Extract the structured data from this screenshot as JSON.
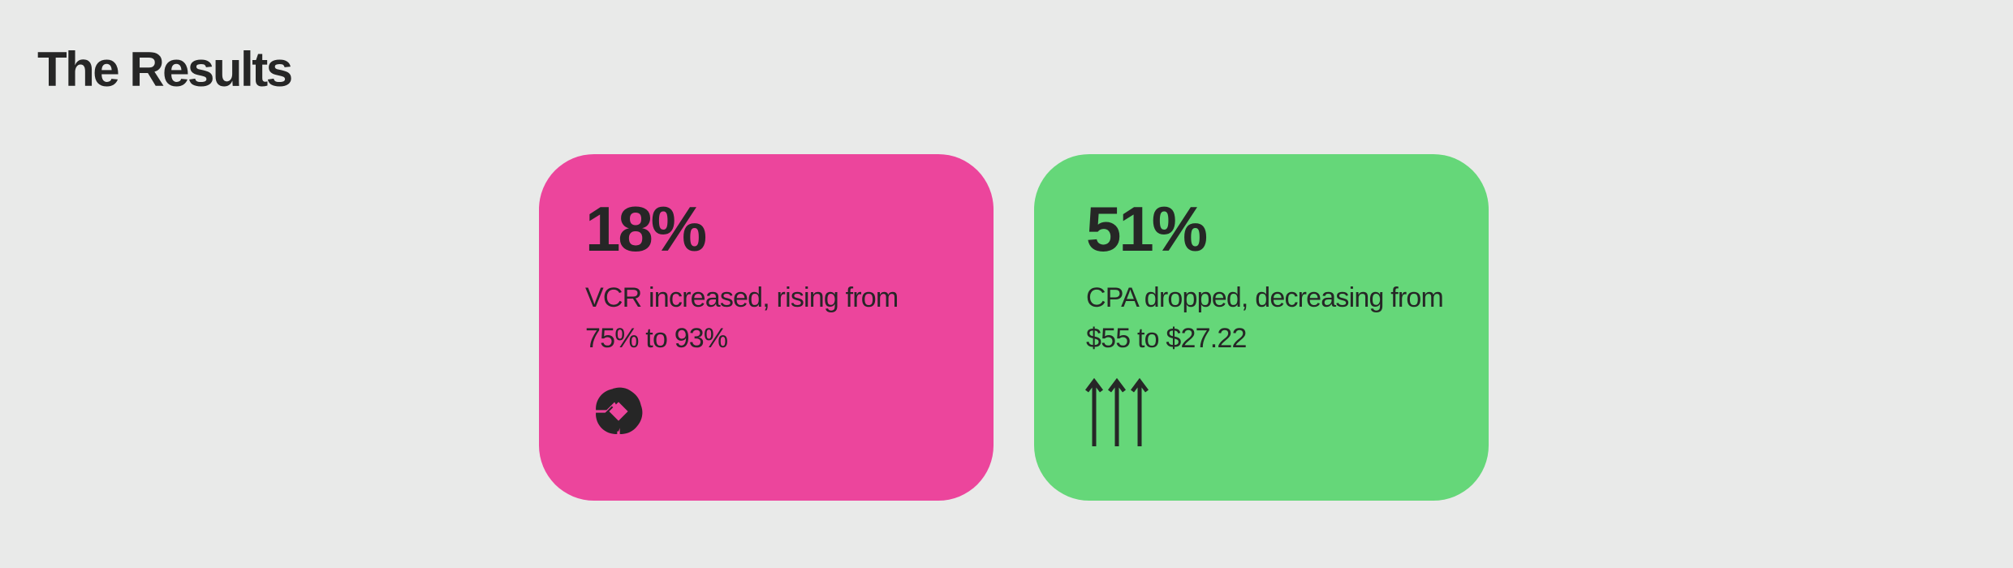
{
  "header": {
    "title": "The Results"
  },
  "cards": [
    {
      "stat": "18%",
      "description": "VCR increased, rising from 75% to 93%",
      "background": "#ec459c",
      "icon": "pinwheel-icon"
    },
    {
      "stat": "51%",
      "description": "CPA dropped, decreasing from $55 to $27.22",
      "background": "#65d779",
      "icon": "triple-up-arrows-icon"
    }
  ],
  "colors": {
    "page_background": "#e9eae9",
    "text": "#262626"
  }
}
